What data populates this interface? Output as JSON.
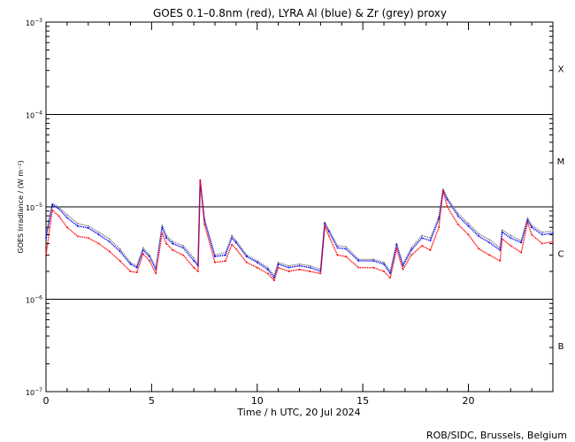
{
  "chart_data": {
    "type": "line",
    "title": "GOES 0.1–0.8nm (red), LYRA Al (blue) & Zr (grey) proxy",
    "xlabel": "Time / h UTC, 20 Jul 2024",
    "ylabel": "GOES Irradiance / (W m⁻²)",
    "yscale": "log",
    "xlim": [
      0,
      24
    ],
    "ylim": [
      1e-07,
      0.001
    ],
    "x_ticks": [
      0,
      5,
      10,
      15,
      20
    ],
    "y_ticks": [
      {
        "value": 1e-07,
        "base": "10",
        "exp": "−7"
      },
      {
        "value": 1e-06,
        "base": "10",
        "exp": "−6"
      },
      {
        "value": 1e-05,
        "base": "10",
        "exp": "−5"
      },
      {
        "value": 0.0001,
        "base": "10",
        "exp": "−4"
      },
      {
        "value": 0.001,
        "base": "10",
        "exp": "−3"
      }
    ],
    "flare_class_lines": [
      1e-06,
      1e-05,
      0.0001
    ],
    "flare_classes": [
      {
        "label": "X",
        "value": 0.000316
      },
      {
        "label": "M",
        "value": 3.16e-05
      },
      {
        "label": "C",
        "value": 3.16e-06
      },
      {
        "label": "B",
        "value": 3.16e-07
      }
    ],
    "grid": false,
    "colors": {
      "GOES": "#ff0000",
      "LYRA Al": "#0000ff",
      "LYRA Zr": "#808080"
    },
    "series": [
      {
        "name": "GOES",
        "color": "#ff0000",
        "x": [
          0,
          0.3,
          0.6,
          1,
          1.5,
          2,
          2.5,
          3,
          3.5,
          4,
          4.3,
          4.6,
          4.9,
          5.2,
          5.5,
          5.7,
          6,
          6.5,
          7,
          7.2,
          7.3,
          7.5,
          8,
          8.5,
          8.8,
          9,
          9.5,
          10,
          10.5,
          10.8,
          11,
          11.5,
          12,
          12.5,
          13,
          13.2,
          13.4,
          13.8,
          14.2,
          14.8,
          15.5,
          16,
          16.3,
          16.6,
          16.9,
          17.3,
          17.8,
          18.2,
          18.6,
          18.8,
          19,
          19.5,
          20,
          20.5,
          21,
          21.5,
          21.6,
          22,
          22.5,
          22.8,
          23,
          23.5,
          24
        ],
        "y": [
          3e-06,
          9.2e-06,
          8e-06,
          6e-06,
          4.8e-06,
          4.6e-06,
          4e-06,
          3.3e-06,
          2.6e-06,
          2e-06,
          1.95e-06,
          3.1e-06,
          2.6e-06,
          1.9e-06,
          5.2e-06,
          4e-06,
          3.4e-06,
          3e-06,
          2.2e-06,
          2e-06,
          1.95e-05,
          6.5e-06,
          2.5e-06,
          2.6e-06,
          3.9e-06,
          3.5e-06,
          2.5e-06,
          2.2e-06,
          1.9e-06,
          1.6e-06,
          2.2e-06,
          2e-06,
          2.1e-06,
          2e-06,
          1.9e-06,
          6.2e-06,
          4.8e-06,
          3e-06,
          2.9e-06,
          2.2e-06,
          2.2e-06,
          2e-06,
          1.7e-06,
          3.5e-06,
          2.1e-06,
          3e-06,
          3.8e-06,
          3.4e-06,
          6e-06,
          1.5e-05,
          1e-05,
          6.5e-06,
          5e-06,
          3.5e-06,
          3e-06,
          2.6e-06,
          4.5e-06,
          3.8e-06,
          3.2e-06,
          6.8e-06,
          5e-06,
          4e-06,
          4.2e-06
        ]
      },
      {
        "name": "LYRA Al",
        "color": "#0000ff",
        "x": [
          0,
          0.3,
          0.6,
          1,
          1.5,
          2,
          2.5,
          3,
          3.5,
          4,
          4.3,
          4.6,
          4.9,
          5.2,
          5.5,
          5.7,
          6,
          6.5,
          7,
          7.2,
          7.3,
          7.5,
          8,
          8.5,
          8.8,
          9,
          9.5,
          10,
          10.5,
          10.8,
          11,
          11.5,
          12,
          12.5,
          13,
          13.2,
          13.4,
          13.8,
          14.2,
          14.8,
          15.5,
          16,
          16.3,
          16.6,
          16.9,
          17.3,
          17.8,
          18.2,
          18.6,
          18.8,
          19,
          19.5,
          20,
          20.5,
          21,
          21.5,
          21.6,
          22,
          22.5,
          22.8,
          23,
          23.5,
          24
        ],
        "y": [
          4.6e-06,
          1.05e-05,
          9.6e-06,
          7.6e-06,
          6.2e-06,
          5.9e-06,
          5e-06,
          4.2e-06,
          3.3e-06,
          2.4e-06,
          2.2e-06,
          3.4e-06,
          2.9e-06,
          2.1e-06,
          6e-06,
          4.6e-06,
          4e-06,
          3.6e-06,
          2.6e-06,
          2.3e-06,
          1.95e-05,
          7.2e-06,
          2.9e-06,
          3e-06,
          4.6e-06,
          4.1e-06,
          2.9e-06,
          2.5e-06,
          2.1e-06,
          1.7e-06,
          2.4e-06,
          2.2e-06,
          2.3e-06,
          2.2e-06,
          2e-06,
          6.6e-06,
          5.4e-06,
          3.6e-06,
          3.5e-06,
          2.6e-06,
          2.6e-06,
          2.4e-06,
          1.9e-06,
          3.9e-06,
          2.3e-06,
          3.4e-06,
          4.6e-06,
          4.3e-06,
          7.4e-06,
          1.5e-05,
          1.2e-05,
          8e-06,
          6.2e-06,
          4.8e-06,
          4.1e-06,
          3.4e-06,
          5.3e-06,
          4.6e-06,
          4.1e-06,
          7.2e-06,
          6e-06,
          5e-06,
          5.2e-06
        ]
      },
      {
        "name": "LYRA Zr",
        "color": "#808080",
        "x": [
          0,
          0.3,
          0.6,
          1,
          1.5,
          2,
          2.5,
          3,
          3.5,
          4,
          4.3,
          4.6,
          4.9,
          5.2,
          5.5,
          5.7,
          6,
          6.5,
          7,
          7.2,
          7.3,
          7.5,
          8,
          8.5,
          8.8,
          9,
          9.5,
          10,
          10.5,
          10.8,
          11,
          11.5,
          12,
          12.5,
          13,
          13.2,
          13.4,
          13.8,
          14.2,
          14.8,
          15.5,
          16,
          16.3,
          16.6,
          16.9,
          17.3,
          17.8,
          18.2,
          18.6,
          18.8,
          19,
          19.5,
          20,
          20.5,
          21,
          21.5,
          21.6,
          22,
          22.5,
          22.8,
          23,
          23.5,
          24
        ],
        "y": [
          5e-06,
          1.08e-05,
          1e-05,
          8.2e-06,
          6.6e-06,
          6.2e-06,
          5.3e-06,
          4.5e-06,
          3.5e-06,
          2.5e-06,
          2.3e-06,
          3.6e-06,
          3e-06,
          2.2e-06,
          6.3e-06,
          4.9e-06,
          4.2e-06,
          3.8e-06,
          2.8e-06,
          2.4e-06,
          1.9e-05,
          7.4e-06,
          3e-06,
          3.2e-06,
          4.9e-06,
          4.3e-06,
          3e-06,
          2.6e-06,
          2.2e-06,
          1.8e-06,
          2.5e-06,
          2.3e-06,
          2.4e-06,
          2.3e-06,
          2.1e-06,
          6.8e-06,
          5.6e-06,
          3.8e-06,
          3.7e-06,
          2.7e-06,
          2.7e-06,
          2.5e-06,
          2e-06,
          4e-06,
          2.4e-06,
          3.6e-06,
          4.9e-06,
          4.6e-06,
          7.8e-06,
          1.55e-05,
          1.25e-05,
          8.5e-06,
          6.6e-06,
          5.1e-06,
          4.4e-06,
          3.6e-06,
          5.6e-06,
          4.9e-06,
          4.3e-06,
          7.6e-06,
          6.3e-06,
          5.3e-06,
          5.5e-06
        ]
      }
    ]
  },
  "footer": {
    "credit": "ROB/SIDC, Brussels, Belgium"
  }
}
